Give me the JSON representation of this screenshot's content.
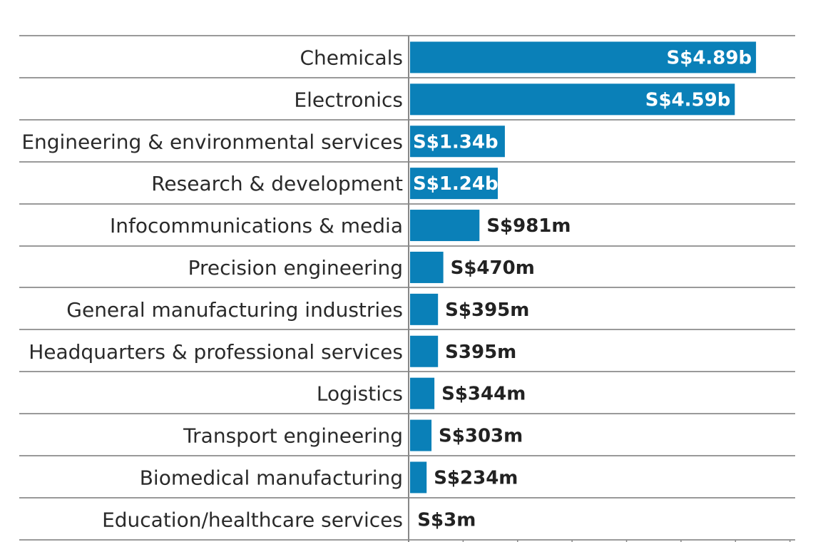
{
  "chart_data": {
    "type": "bar",
    "orientation": "horizontal",
    "title": "",
    "xlabel": "",
    "ylabel": "",
    "unit": "S$ billion",
    "xlim": [
      0,
      5.5
    ],
    "grid": true,
    "legend": "none",
    "bar_color": "#0a80b8",
    "inside_label_color": "#ffffff",
    "outside_label_color": "#222222",
    "categories": [
      "Chemicals",
      "Electronics",
      "Engineering & environmental services",
      "Research & development",
      "Infocommunications & media",
      "Precision engineering",
      "General manufacturing industries",
      "Headquarters & professional services",
      "Logistics",
      "Transport engineering",
      "Biomedical manufacturing",
      "Education/healthcare services"
    ],
    "values": [
      4.89,
      4.59,
      1.34,
      1.24,
      0.981,
      0.47,
      0.395,
      0.395,
      0.344,
      0.303,
      0.234,
      0.003
    ],
    "data_labels": [
      "S$4.89b",
      "S$4.59b",
      "S$1.34b",
      "S$1.24b",
      "S$981m",
      "S$470m",
      "S$395m",
      "S395m",
      "S$344m",
      "S$303m",
      "S$234m",
      "S$3m"
    ],
    "labels_inside_bar": [
      true,
      true,
      true,
      true,
      false,
      false,
      false,
      false,
      false,
      false,
      false,
      false
    ]
  }
}
